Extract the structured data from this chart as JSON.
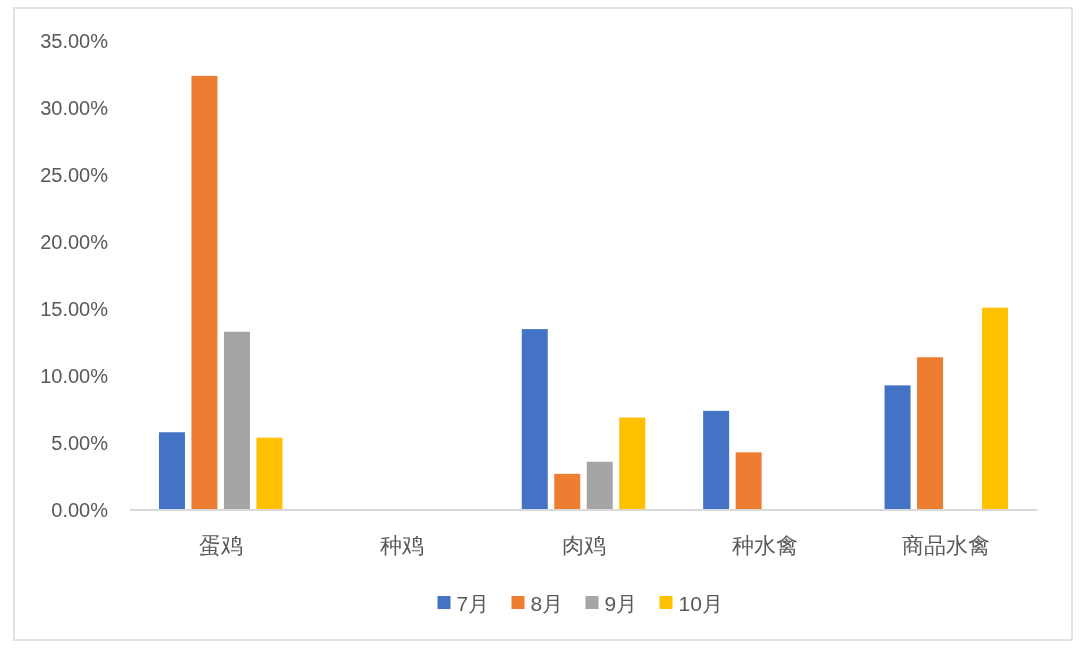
{
  "chart_data": {
    "type": "bar",
    "categories": [
      "蛋鸡",
      "种鸡",
      "肉鸡",
      "种水禽",
      "商品水禽"
    ],
    "series": [
      {
        "name": "7月",
        "color": "#4472c4",
        "values": [
          5.8,
          null,
          13.5,
          7.4,
          9.3
        ]
      },
      {
        "name": "8月",
        "color": "#ed7d31",
        "values": [
          32.4,
          null,
          2.7,
          4.3,
          11.4
        ]
      },
      {
        "name": "9月",
        "color": "#a5a5a5",
        "values": [
          13.3,
          null,
          3.6,
          null,
          null
        ]
      },
      {
        "name": "10月",
        "color": "#ffc000",
        "values": [
          5.4,
          null,
          6.9,
          null,
          15.1
        ]
      }
    ],
    "ylim": [
      0,
      35
    ],
    "yticks": [
      {
        "value": 0,
        "label": "0.00%"
      },
      {
        "value": 5,
        "label": "5.00%"
      },
      {
        "value": 10,
        "label": "10.00%"
      },
      {
        "value": 15,
        "label": "15.00%"
      },
      {
        "value": 20,
        "label": "20.00%"
      },
      {
        "value": 25,
        "label": "25.00%"
      },
      {
        "value": 30,
        "label": "30.00%"
      },
      {
        "value": 35,
        "label": "35.00%"
      }
    ],
    "grid": false,
    "legend": "bottom"
  }
}
